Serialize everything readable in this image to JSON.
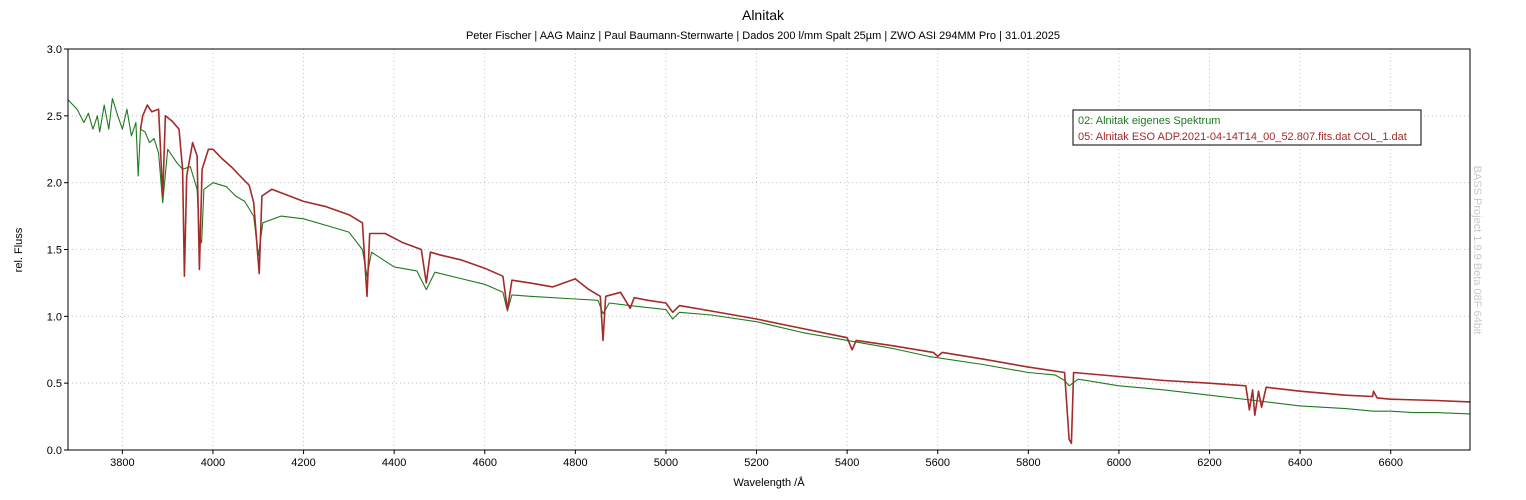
{
  "chart_data": {
    "type": "line",
    "title": "Alnitak",
    "subtitle": "Peter Fischer | AAG Mainz | Paul Baumann-Sternwarte | Dados 200 l/mm Spalt 25µm | ZWO ASI 294MM Pro | 31.01.2025",
    "xlabel": "Wavelength /Å",
    "ylabel": "rel. Fluss",
    "watermark": "BASS Project 1.9.9 Beta 08F 64bit",
    "xlim": [
      3680,
      6775
    ],
    "ylim": [
      0,
      3.0
    ],
    "x_ticks": [
      "3800",
      "4000",
      "4200",
      "4400",
      "4600",
      "4800",
      "5000",
      "5200",
      "5400",
      "5600",
      "5800",
      "6000",
      "6200",
      "6400",
      "6600"
    ],
    "y_ticks": [
      "0.0",
      "0.5",
      "1.0",
      "1.5",
      "2.0",
      "2.5",
      "3.0"
    ],
    "grid": true,
    "legend_position": "top-right",
    "series": [
      {
        "name": "02: Alnitak eigenes Spektrum",
        "color": "#1f7a1f",
        "points": [
          [
            3680,
            2.62
          ],
          [
            3700,
            2.55
          ],
          [
            3715,
            2.45
          ],
          [
            3725,
            2.52
          ],
          [
            3735,
            2.4
          ],
          [
            3745,
            2.5
          ],
          [
            3750,
            2.38
          ],
          [
            3760,
            2.58
          ],
          [
            3770,
            2.4
          ],
          [
            3778,
            2.63
          ],
          [
            3790,
            2.5
          ],
          [
            3800,
            2.4
          ],
          [
            3810,
            2.55
          ],
          [
            3820,
            2.35
          ],
          [
            3830,
            2.45
          ],
          [
            3835,
            2.05
          ],
          [
            3840,
            2.4
          ],
          [
            3850,
            2.38
          ],
          [
            3860,
            2.3
          ],
          [
            3870,
            2.33
          ],
          [
            3880,
            2.22
          ],
          [
            3889,
            1.85
          ],
          [
            3900,
            2.25
          ],
          [
            3920,
            2.15
          ],
          [
            3933,
            2.1
          ],
          [
            3950,
            2.12
          ],
          [
            3965,
            1.95
          ],
          [
            3970,
            1.6
          ],
          [
            3975,
            1.55
          ],
          [
            3980,
            1.95
          ],
          [
            4000,
            2.0
          ],
          [
            4030,
            1.97
          ],
          [
            4050,
            1.9
          ],
          [
            4070,
            1.86
          ],
          [
            4090,
            1.75
          ],
          [
            4100,
            1.45
          ],
          [
            4110,
            1.7
          ],
          [
            4150,
            1.75
          ],
          [
            4200,
            1.73
          ],
          [
            4250,
            1.68
          ],
          [
            4300,
            1.63
          ],
          [
            4330,
            1.5
          ],
          [
            4340,
            1.3
          ],
          [
            4350,
            1.48
          ],
          [
            4400,
            1.37
          ],
          [
            4450,
            1.34
          ],
          [
            4471,
            1.2
          ],
          [
            4490,
            1.33
          ],
          [
            4550,
            1.28
          ],
          [
            4600,
            1.24
          ],
          [
            4640,
            1.18
          ],
          [
            4650,
            1.04
          ],
          [
            4660,
            1.16
          ],
          [
            4700,
            1.15
          ],
          [
            4800,
            1.13
          ],
          [
            4850,
            1.12
          ],
          [
            4861,
            1.02
          ],
          [
            4875,
            1.1
          ],
          [
            4920,
            1.08
          ],
          [
            5000,
            1.05
          ],
          [
            5015,
            0.98
          ],
          [
            5030,
            1.03
          ],
          [
            5100,
            1.01
          ],
          [
            5200,
            0.96
          ],
          [
            5300,
            0.88
          ],
          [
            5400,
            0.82
          ],
          [
            5500,
            0.76
          ],
          [
            5580,
            0.7
          ],
          [
            5700,
            0.64
          ],
          [
            5800,
            0.58
          ],
          [
            5860,
            0.56
          ],
          [
            5880,
            0.52
          ],
          [
            5890,
            0.48
          ],
          [
            5910,
            0.53
          ],
          [
            6000,
            0.48
          ],
          [
            6100,
            0.45
          ],
          [
            6200,
            0.41
          ],
          [
            6300,
            0.37
          ],
          [
            6400,
            0.33
          ],
          [
            6500,
            0.31
          ],
          [
            6562,
            0.29
          ],
          [
            6600,
            0.29
          ],
          [
            6650,
            0.28
          ],
          [
            6700,
            0.28
          ],
          [
            6775,
            0.27
          ]
        ]
      },
      {
        "name": "05: Alnitak ESO ADP.2021-04-14T14_00_52.807.fits.dat COL_1.dat",
        "color": "#a52a2a",
        "points": [
          [
            3840,
            2.4
          ],
          [
            3845,
            2.5
          ],
          [
            3855,
            2.58
          ],
          [
            3865,
            2.53
          ],
          [
            3880,
            2.55
          ],
          [
            3889,
            1.9
          ],
          [
            3895,
            2.5
          ],
          [
            3910,
            2.46
          ],
          [
            3925,
            2.4
          ],
          [
            3933,
            2.1
          ],
          [
            3937,
            1.3
          ],
          [
            3942,
            2.05
          ],
          [
            3955,
            2.3
          ],
          [
            3965,
            2.2
          ],
          [
            3970,
            1.35
          ],
          [
            3976,
            2.1
          ],
          [
            3990,
            2.25
          ],
          [
            4000,
            2.25
          ],
          [
            4020,
            2.18
          ],
          [
            4040,
            2.12
          ],
          [
            4060,
            2.05
          ],
          [
            4080,
            1.98
          ],
          [
            4090,
            1.85
          ],
          [
            4102,
            1.32
          ],
          [
            4108,
            1.9
          ],
          [
            4130,
            1.95
          ],
          [
            4200,
            1.86
          ],
          [
            4250,
            1.82
          ],
          [
            4300,
            1.76
          ],
          [
            4330,
            1.7
          ],
          [
            4340,
            1.15
          ],
          [
            4346,
            1.62
          ],
          [
            4380,
            1.62
          ],
          [
            4420,
            1.55
          ],
          [
            4460,
            1.5
          ],
          [
            4471,
            1.25
          ],
          [
            4480,
            1.48
          ],
          [
            4500,
            1.46
          ],
          [
            4550,
            1.42
          ],
          [
            4600,
            1.36
          ],
          [
            4640,
            1.3
          ],
          [
            4650,
            1.05
          ],
          [
            4660,
            1.27
          ],
          [
            4700,
            1.25
          ],
          [
            4750,
            1.22
          ],
          [
            4800,
            1.28
          ],
          [
            4830,
            1.2
          ],
          [
            4855,
            1.15
          ],
          [
            4861,
            0.82
          ],
          [
            4867,
            1.15
          ],
          [
            4900,
            1.18
          ],
          [
            4921,
            1.06
          ],
          [
            4930,
            1.14
          ],
          [
            4960,
            1.12
          ],
          [
            5000,
            1.1
          ],
          [
            5015,
            1.03
          ],
          [
            5030,
            1.08
          ],
          [
            5100,
            1.04
          ],
          [
            5200,
            0.98
          ],
          [
            5300,
            0.91
          ],
          [
            5400,
            0.84
          ],
          [
            5411,
            0.75
          ],
          [
            5420,
            0.82
          ],
          [
            5500,
            0.78
          ],
          [
            5590,
            0.73
          ],
          [
            5600,
            0.7
          ],
          [
            5610,
            0.73
          ],
          [
            5700,
            0.68
          ],
          [
            5800,
            0.62
          ],
          [
            5880,
            0.58
          ],
          [
            5890,
            0.08
          ],
          [
            5895,
            0.05
          ],
          [
            5900,
            0.58
          ],
          [
            6000,
            0.55
          ],
          [
            6100,
            0.52
          ],
          [
            6200,
            0.5
          ],
          [
            6280,
            0.48
          ],
          [
            6288,
            0.3
          ],
          [
            6295,
            0.45
          ],
          [
            6300,
            0.26
          ],
          [
            6308,
            0.44
          ],
          [
            6315,
            0.32
          ],
          [
            6325,
            0.47
          ],
          [
            6400,
            0.44
          ],
          [
            6500,
            0.41
          ],
          [
            6560,
            0.4
          ],
          [
            6562,
            0.44
          ],
          [
            6570,
            0.39
          ],
          [
            6600,
            0.38
          ],
          [
            6700,
            0.37
          ],
          [
            6775,
            0.36
          ]
        ]
      }
    ]
  }
}
